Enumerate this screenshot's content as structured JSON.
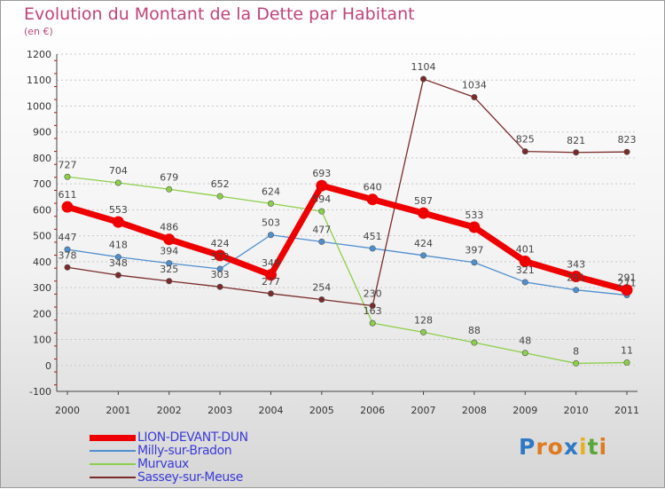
{
  "chart_data": {
    "type": "line",
    "title": "Evolution du Montant de la Dette par Habitant",
    "subtitle": "(en €)",
    "xlabel": "",
    "ylabel": "",
    "categories": [
      "2000",
      "2001",
      "2002",
      "2003",
      "2004",
      "2005",
      "2006",
      "2007",
      "2008",
      "2009",
      "2010",
      "2011"
    ],
    "ylim": [
      -100,
      1200
    ],
    "yticks": [
      -100,
      0,
      100,
      200,
      300,
      400,
      500,
      600,
      700,
      800,
      900,
      1000,
      1100,
      1200
    ],
    "grid": "horizontal dashed",
    "series": [
      {
        "name": "LION-DEVANT-DUN",
        "color": "#ee0000",
        "values": [
          611,
          553,
          486,
          424,
          349,
          693,
          640,
          587,
          533,
          401,
          343,
          291
        ]
      },
      {
        "name": "Milly-sur-Bradon",
        "color": "#4f8fd0",
        "values": [
          447,
          418,
          394,
          372,
          503,
          477,
          451,
          424,
          397,
          321,
          291,
          271
        ]
      },
      {
        "name": "Murvaux",
        "color": "#8ccf4a",
        "values": [
          727,
          704,
          679,
          652,
          624,
          594,
          163,
          128,
          88,
          48,
          8,
          11
        ]
      },
      {
        "name": "Sassey-sur-Meuse",
        "color": "#7a2a2a",
        "values": [
          378,
          348,
          325,
          303,
          277,
          254,
          230,
          1104,
          1034,
          825,
          821,
          823
        ]
      }
    ]
  },
  "logo": {
    "text": "Proxiti",
    "letters": [
      "P",
      "r",
      "o",
      "x",
      "i",
      "t",
      "i"
    ],
    "colors": [
      "#2f78c4",
      "#e07a1e",
      "#e07a1e",
      "#2f78c4",
      "#e8b020",
      "#5aa83a",
      "#e07a1e"
    ]
  }
}
